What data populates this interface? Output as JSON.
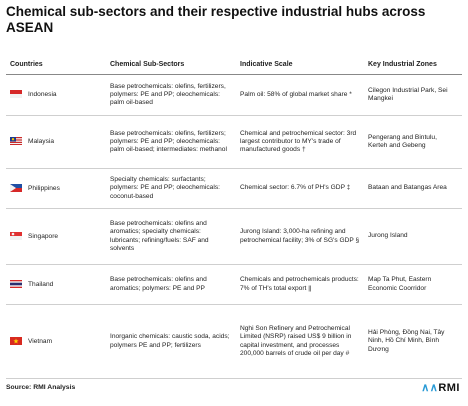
{
  "title": "Chemical sub-sectors and their respective industrial hubs across ASEAN",
  "table": {
    "headers": [
      "Countries",
      "Chemical Sub-Sectors",
      "Indicative Scale",
      "Key Industrial Zones"
    ],
    "rows": [
      [
        "Indonesia",
        "Base petrochemicals: olefins, fertilizers, polymers: PE and PP; oleochemicals: palm oil-based",
        "Palm oil: 58% of global market share *",
        "Cilegon Industrial Park, Sei Mangkei"
      ],
      [
        "Malaysia",
        "Base petrochemicals: olefins, fertilizers; polymers: PE and PP; oleochemicals: palm oil-based; intermediates: methanol",
        "Chemical and petrochemical sector: 3rd largest contributor to MY's trade of manufactured goods †",
        "Pengerang and Bintulu, Kerteh and Gebeng"
      ],
      [
        "Philippines",
        "Specialty chemicals: surfactants; polymers: PE and PP; oleochemicals: coconut-based",
        "Chemical sector: 6.7% of PH's GDP ‡",
        "Bataan and Batangas Area"
      ],
      [
        "Singapore",
        "Base petrochemicals: olefins and aromatics; specialty chemicals: lubricants; refining/fuels: SAF and solvents",
        "Jurong Island: 3,000-ha refining and petrochemical facility; 3% of SG's GDP §",
        "Jurong Island"
      ],
      [
        "Thailand",
        "Base petrochemicals: olefins and aromatics; polymers: PE and PP",
        "Chemicals and petrochemicals products: 7% of TH's total export ||",
        "Map Ta Phut, Eastern Economic Coorridor"
      ],
      [
        "Vietnam",
        "Inorganic chemicals: caustic soda, acids; polymers PE and PP; fertilizers",
        "Nghi Son Refinery and Petrochemical Limited (NSRP) raised US$ 9 billion in capital investment, and processes 200,000 barrels of crude oil per day #",
        "Hải Phòng, Đồng Nai, Tây Ninh, Hồ Chí Minh, Bình Dương"
      ]
    ]
  },
  "source": "Source: RMI Analysis",
  "logo": "RMI"
}
